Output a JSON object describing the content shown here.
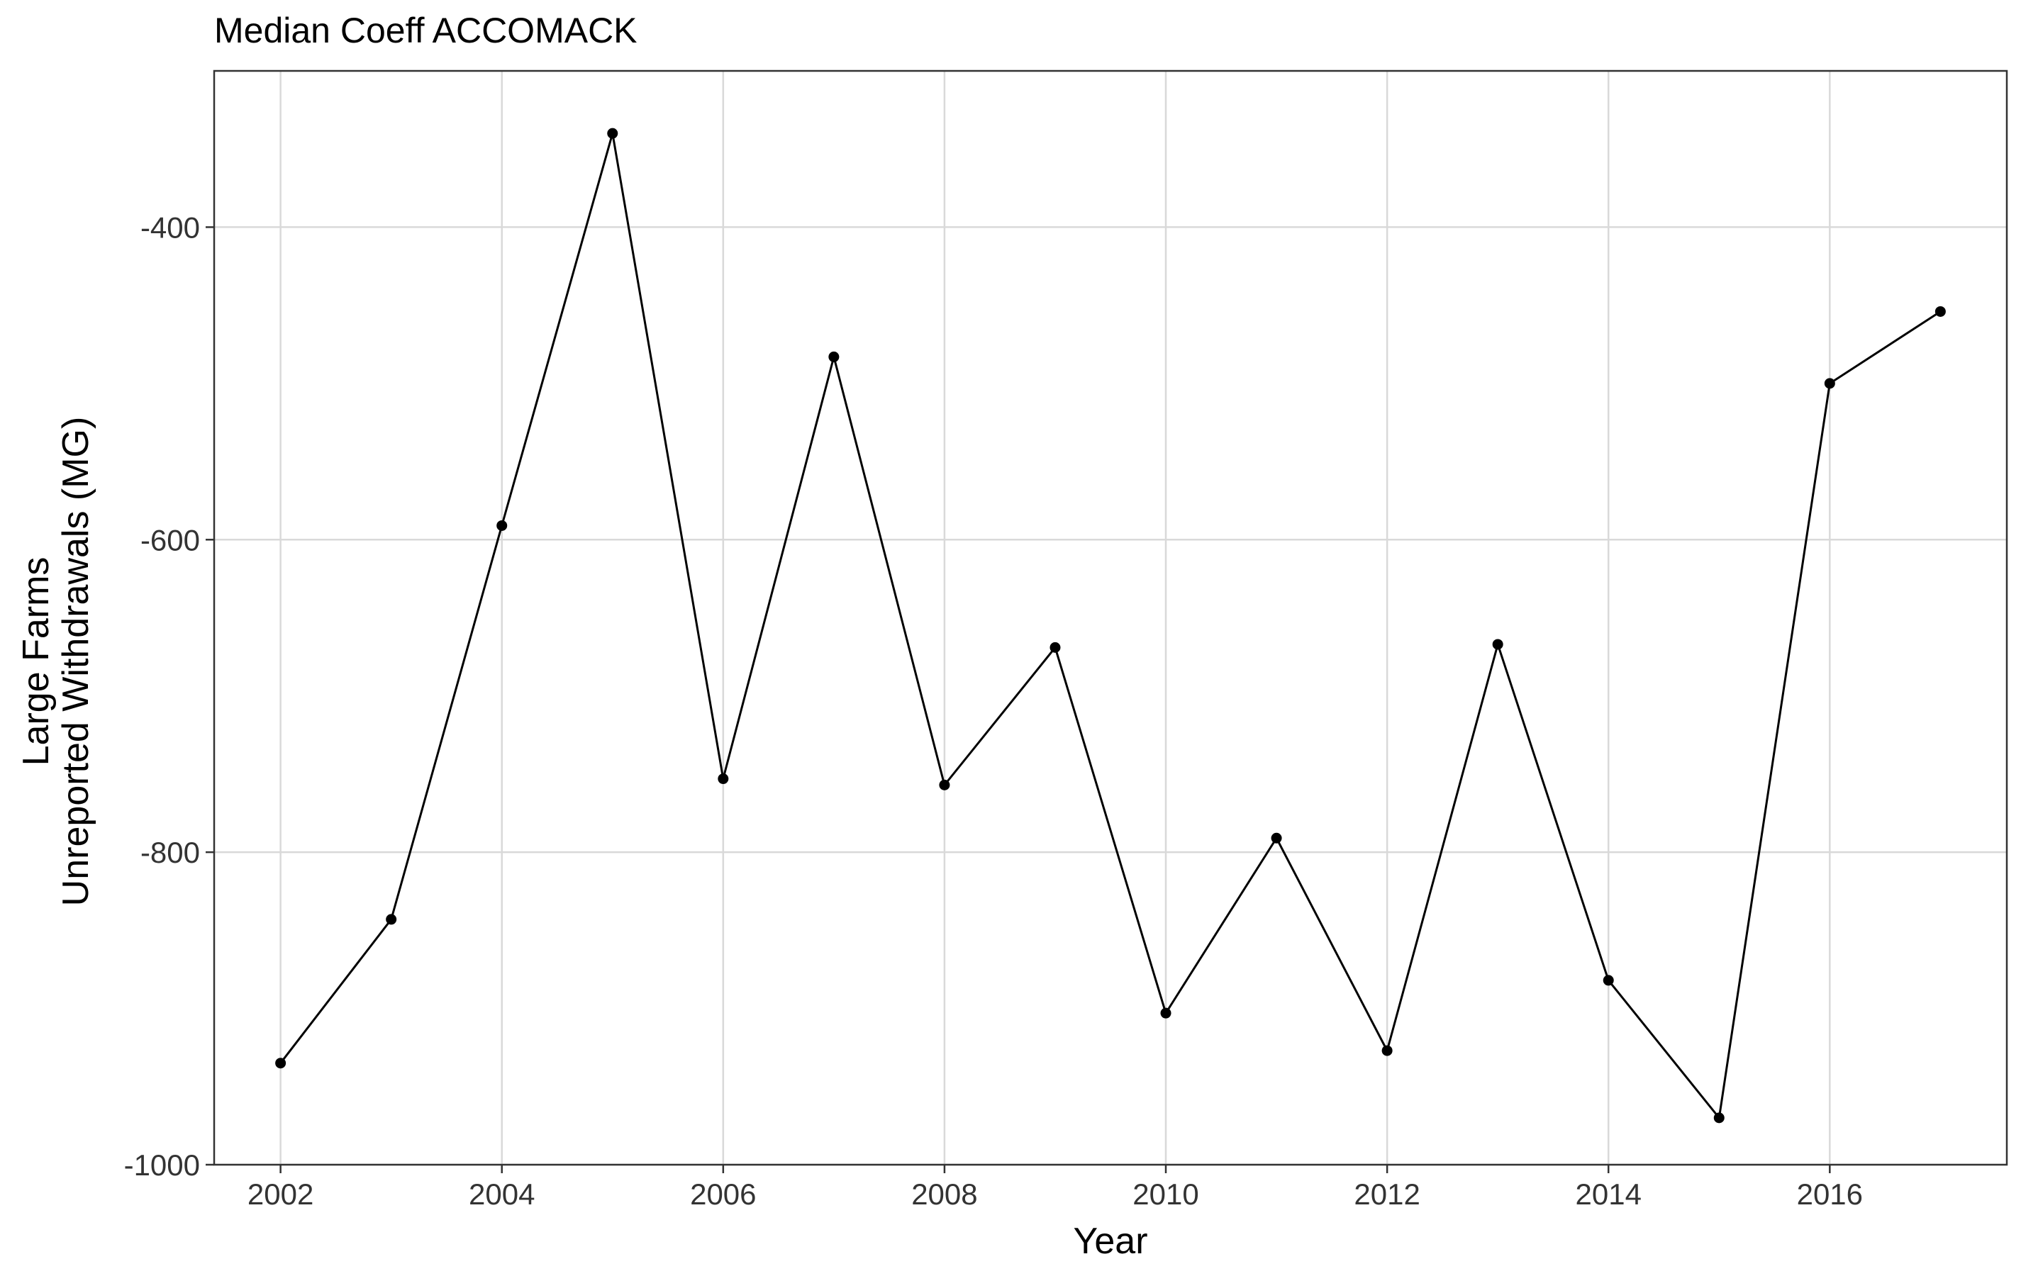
{
  "chart_data": {
    "type": "line",
    "title": "Median Coeff ACCOMACK",
    "xlabel": "Year",
    "ylabel_lines": [
      "Large Farms",
      "Unreported Withdrawals (MG)"
    ],
    "x": [
      2002,
      2003,
      2004,
      2005,
      2006,
      2007,
      2008,
      2009,
      2010,
      2011,
      2012,
      2013,
      2014,
      2015,
      2016,
      2017
    ],
    "y": [
      -935,
      -843,
      -591,
      -340,
      -753,
      -483,
      -757,
      -669,
      -903,
      -791,
      -927,
      -667,
      -882,
      -970,
      -500,
      -454
    ],
    "xlim": [
      2001.4,
      2017.6
    ],
    "ylim": [
      -1000,
      -300
    ],
    "x_ticks": [
      2002,
      2004,
      2006,
      2008,
      2010,
      2012,
      2014,
      2016
    ],
    "x_tick_labels": [
      "2002",
      "2004",
      "2006",
      "2008",
      "2010",
      "2012",
      "2014",
      "2016"
    ],
    "y_ticks": [
      -1000,
      -800,
      -600,
      -400
    ],
    "y_tick_labels": [
      "-1000",
      "-800",
      "-600",
      "-400"
    ],
    "grid": true,
    "legend": "none",
    "colors": {
      "line": "#000000",
      "point": "#000000",
      "grid": "#d9d9d9",
      "panel_border": "#333333"
    }
  }
}
